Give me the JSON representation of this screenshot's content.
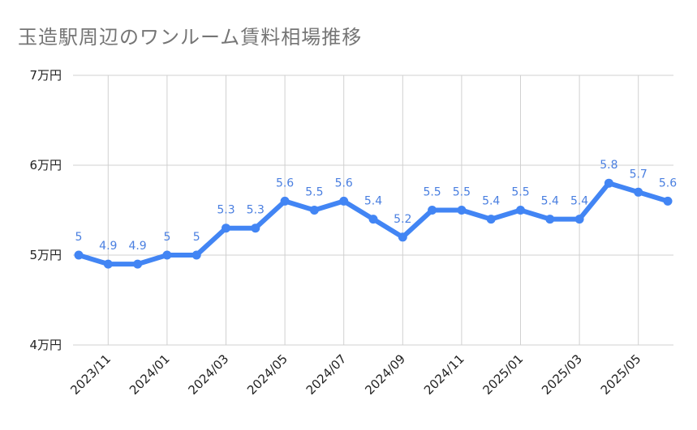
{
  "chart_data": {
    "type": "line",
    "title": "玉造駅周辺のワンルーム賃料相場推移",
    "x_ticks": [
      "2023/11",
      "2024/01",
      "2024/03",
      "2024/05",
      "2024/07",
      "2024/09",
      "2024/11",
      "2025/01",
      "2025/03",
      "2025/05"
    ],
    "y_ticks": [
      "7万円",
      "6万円",
      "5万円",
      "4万円"
    ],
    "ylim": [
      4,
      7
    ],
    "series": [
      {
        "color": "#4285f4",
        "values": [
          5,
          4.9,
          4.9,
          5,
          5,
          5.3,
          5.3,
          5.6,
          5.5,
          5.6,
          5.4,
          5.2,
          5.5,
          5.5,
          5.4,
          5.5,
          5.4,
          5.4,
          5.8,
          5.7,
          5.6
        ],
        "data_labels": [
          "5",
          "4.9",
          "4.9",
          "5",
          "5",
          "5.3",
          "5.3",
          "5.6",
          "5.5",
          "5.6",
          "5.4",
          "5.2",
          "5.5",
          "5.5",
          "5.4",
          "5.5",
          "5.4",
          "5.4",
          "5.8",
          "5.7",
          "5.6"
        ]
      }
    ],
    "grid": true,
    "legend": "none"
  }
}
